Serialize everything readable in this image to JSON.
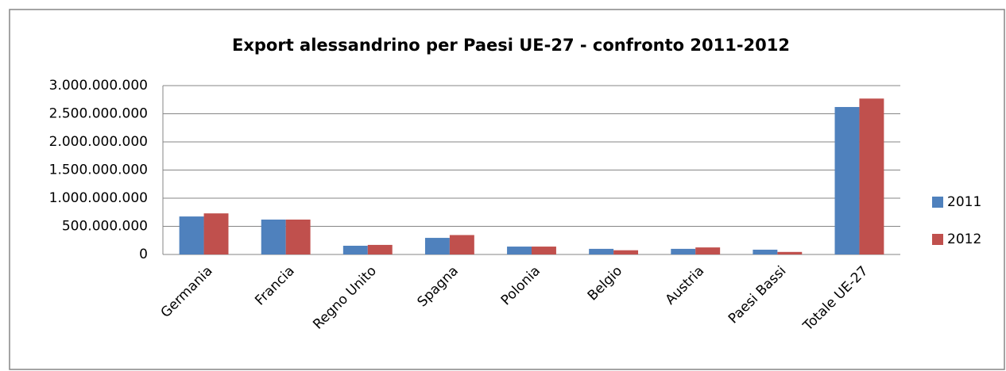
{
  "chart_data": {
    "type": "bar",
    "title": "Export alessandrino per Paesi UE-27 - confronto 2011-2012",
    "categories": [
      "Germania",
      "Francia",
      "Regno Unito",
      "Spagna",
      "Polonia",
      "Belgio",
      "Austria",
      "Paesi Bassi",
      "Totale UE-27"
    ],
    "series": [
      {
        "name": "2011",
        "color": "#4f81bd",
        "values": [
          675000000,
          620000000,
          155000000,
          295000000,
          140000000,
          100000000,
          100000000,
          85000000,
          2620000000
        ]
      },
      {
        "name": "2012",
        "color": "#c0504d",
        "values": [
          730000000,
          620000000,
          170000000,
          345000000,
          140000000,
          75000000,
          125000000,
          45000000,
          2770000000
        ]
      }
    ],
    "ylim": [
      0,
      3000000000
    ],
    "yticks": [
      0,
      {
        "value": 500000000,
        "label": "500.000.000"
      },
      {
        "value": 1000000000,
        "label": "1.000.000.000"
      },
      {
        "value": 1500000000,
        "label": "1.500.000.000"
      },
      {
        "value": 2000000000,
        "label": "2.000.000.000"
      },
      {
        "value": 2500000000,
        "label": "2.500.000.000"
      },
      {
        "value": 3000000000,
        "label": "3.000.000.000"
      }
    ],
    "grid": true,
    "legend": "right"
  }
}
